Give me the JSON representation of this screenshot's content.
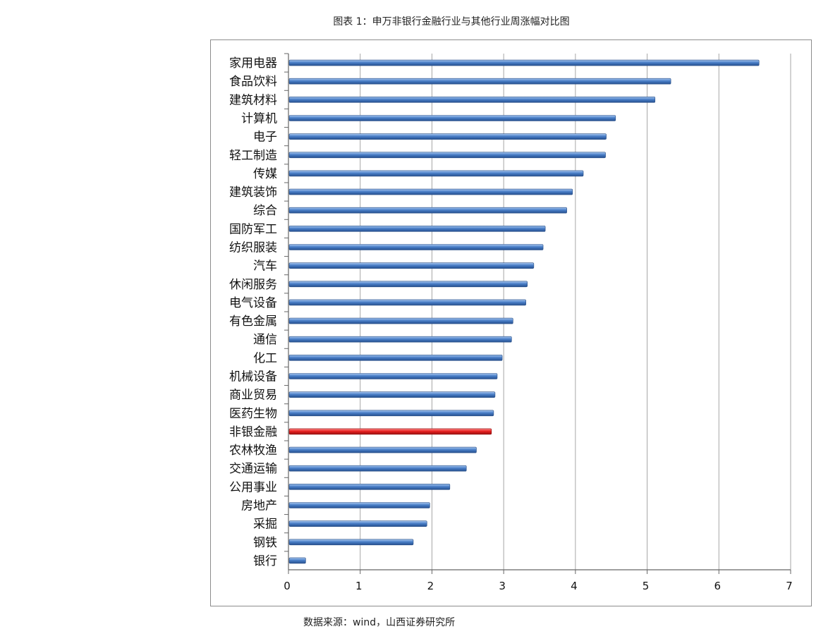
{
  "title": "图表 1：申万非银行金融行业与其他行业周涨幅对比图",
  "source": "数据来源：wind，山西证券研究所",
  "colors": {
    "bar_default": "#4a7fc8",
    "bar_highlight": "#e82020",
    "grid": "#a6a6a6",
    "frame": "#8c8c8c"
  },
  "chart_data": {
    "type": "bar",
    "orientation": "horizontal",
    "categories": [
      "家用电器",
      "食品饮料",
      "建筑材料",
      "计算机",
      "电子",
      "轻工制造",
      "传媒",
      "建筑装饰",
      "综合",
      "国防军工",
      "纺织服装",
      "汽车",
      "休闲服务",
      "电气设备",
      "有色金属",
      "通信",
      "化工",
      "机械设备",
      "商业贸易",
      "医药生物",
      "非银金融",
      "农林牧渔",
      "交通运输",
      "公用事业",
      "房地产",
      "采掘",
      "钢铁",
      "银行"
    ],
    "values": [
      6.55,
      5.32,
      5.1,
      4.55,
      4.42,
      4.41,
      4.1,
      3.95,
      3.87,
      3.57,
      3.54,
      3.41,
      3.32,
      3.3,
      3.12,
      3.1,
      2.97,
      2.9,
      2.87,
      2.85,
      2.82,
      2.61,
      2.47,
      2.24,
      1.96,
      1.92,
      1.73,
      0.23
    ],
    "highlight": "非银金融",
    "xlim": [
      0,
      7
    ],
    "xticks": [
      "0",
      "1",
      "2",
      "3",
      "4",
      "5",
      "6",
      "7"
    ],
    "grid": "vertical",
    "legend": "none"
  }
}
